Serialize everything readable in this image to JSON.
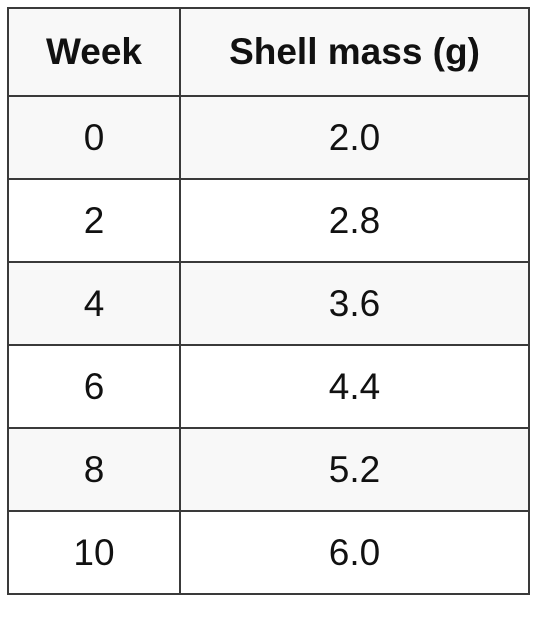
{
  "table": {
    "headers": [
      "Week",
      "Shell mass (g)"
    ],
    "rows": [
      [
        "0",
        "2.0"
      ],
      [
        "2",
        "2.8"
      ],
      [
        "4",
        "3.6"
      ],
      [
        "6",
        "4.4"
      ],
      [
        "8",
        "5.2"
      ],
      [
        "10",
        "6.0"
      ]
    ],
    "colors": {
      "border": "#3a3a3a",
      "row_light": "#f8f8f8",
      "row_white": "#ffffff",
      "text": "#111111"
    }
  }
}
